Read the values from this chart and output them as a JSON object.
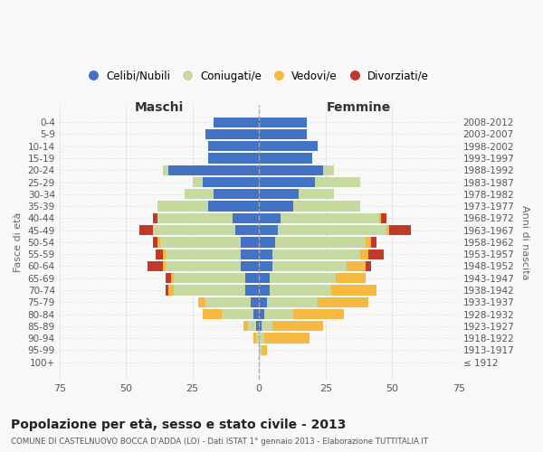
{
  "age_groups": [
    "100+",
    "95-99",
    "90-94",
    "85-89",
    "80-84",
    "75-79",
    "70-74",
    "65-69",
    "60-64",
    "55-59",
    "50-54",
    "45-49",
    "40-44",
    "35-39",
    "30-34",
    "25-29",
    "20-24",
    "15-19",
    "10-14",
    "5-9",
    "0-4"
  ],
  "birth_years": [
    "≤ 1912",
    "1913-1917",
    "1918-1922",
    "1923-1927",
    "1928-1932",
    "1933-1937",
    "1938-1942",
    "1943-1947",
    "1948-1952",
    "1953-1957",
    "1958-1962",
    "1963-1967",
    "1968-1972",
    "1973-1977",
    "1978-1982",
    "1983-1987",
    "1988-1992",
    "1993-1997",
    "1998-2002",
    "2003-2007",
    "2008-2012"
  ],
  "colors": {
    "celibe": "#4472c4",
    "coniugato": "#c5d9a0",
    "vedovo": "#f5b942",
    "divorziato": "#c0392b"
  },
  "maschi_celibe": [
    0,
    0,
    0,
    1,
    2,
    3,
    5,
    5,
    7,
    7,
    7,
    9,
    10,
    19,
    17,
    21,
    34,
    19,
    19,
    20,
    17
  ],
  "maschi_coniugato": [
    0,
    0,
    1,
    3,
    12,
    17,
    27,
    27,
    28,
    28,
    30,
    31,
    28,
    19,
    11,
    4,
    2,
    0,
    0,
    0,
    0
  ],
  "maschi_vedovo": [
    0,
    0,
    1,
    2,
    7,
    3,
    2,
    1,
    1,
    1,
    1,
    0,
    0,
    0,
    0,
    0,
    0,
    0,
    0,
    0,
    0
  ],
  "maschi_divorziato": [
    0,
    0,
    0,
    0,
    0,
    0,
    1,
    2,
    6,
    3,
    2,
    5,
    2,
    0,
    0,
    0,
    0,
    0,
    0,
    0,
    0
  ],
  "femmine_celibe": [
    0,
    0,
    0,
    1,
    2,
    3,
    4,
    4,
    5,
    5,
    6,
    7,
    8,
    13,
    15,
    21,
    24,
    20,
    22,
    18,
    18
  ],
  "femmine_coniugato": [
    0,
    1,
    2,
    4,
    11,
    19,
    23,
    25,
    28,
    33,
    34,
    41,
    37,
    25,
    13,
    17,
    4,
    0,
    0,
    0,
    0
  ],
  "femmine_vedovo": [
    0,
    2,
    17,
    19,
    19,
    19,
    17,
    11,
    7,
    3,
    2,
    1,
    1,
    0,
    0,
    0,
    0,
    0,
    0,
    0,
    0
  ],
  "femmine_divorziato": [
    0,
    0,
    0,
    0,
    0,
    0,
    0,
    0,
    2,
    6,
    2,
    8,
    2,
    0,
    0,
    0,
    0,
    0,
    0,
    0,
    0
  ],
  "xlim": 75,
  "title": "Popolazione per età, sesso e stato civile - 2013",
  "subtitle": "COMUNE DI CASTELNUOVO BOCCA D'ADDA (LO) - Dati ISTAT 1° gennaio 2013 - Elaborazione TUTTITALIA.IT",
  "xlabel_left": "Maschi",
  "xlabel_right": "Femmine",
  "ylabel": "Fasce di età",
  "ylabel_right": "Anni di nascita",
  "legend_labels": [
    "Celibi/Nubili",
    "Coniugati/e",
    "Vedovi/e",
    "Divorziati/e"
  ],
  "bg_color": "#f8f8f8",
  "grid_color": "#cccccc"
}
